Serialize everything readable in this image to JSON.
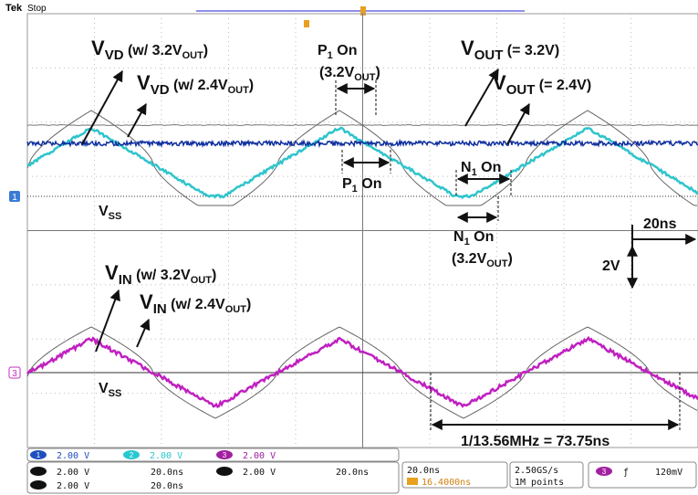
{
  "header": {
    "brand": "Tek",
    "status": "Stop"
  },
  "annotations": [
    {
      "segments": [
        {
          "t": "V"
        },
        {
          "t": "VD",
          "size": "sub"
        },
        {
          "t": " (w/ 3.2V",
          "size": "small"
        },
        {
          "t": "OUT",
          "size": "tiny"
        },
        {
          "t": ")",
          "size": "small"
        }
      ]
    },
    {
      "segments": [
        {
          "t": "V"
        },
        {
          "t": "VD",
          "size": "sub"
        },
        {
          "t": " (w/ 2.4V",
          "size": "small"
        },
        {
          "t": "OUT",
          "size": "tiny"
        },
        {
          "t": ")",
          "size": "small"
        }
      ]
    },
    {
      "segments": [
        {
          "t": "P",
          "size": "small"
        },
        {
          "t": "1",
          "size": "tiny"
        },
        {
          "t": " On",
          "size": "small"
        }
      ]
    },
    {
      "segments": [
        {
          "t": "(3.2V",
          "size": "small"
        },
        {
          "t": "OUT",
          "size": "tiny"
        },
        {
          "t": ")",
          "size": "small"
        }
      ]
    },
    {
      "segments": [
        {
          "t": "V"
        },
        {
          "t": "OUT",
          "size": "sub"
        },
        {
          "t": " (= 3.2V)",
          "size": "small"
        }
      ]
    },
    {
      "segments": [
        {
          "t": "V"
        },
        {
          "t": "OUT",
          "size": "sub"
        },
        {
          "t": " (= 2.4V)",
          "size": "small"
        }
      ]
    },
    {
      "segments": [
        {
          "t": "P",
          "size": "small"
        },
        {
          "t": "1",
          "size": "tiny"
        },
        {
          "t": " On",
          "size": "small"
        }
      ]
    },
    {
      "segments": [
        {
          "t": "N",
          "size": "small"
        },
        {
          "t": "1",
          "size": "tiny"
        },
        {
          "t": " On",
          "size": "small"
        }
      ]
    },
    {
      "segments": [
        {
          "t": "V",
          "size": "small"
        },
        {
          "t": "SS",
          "size": "tiny"
        }
      ]
    },
    {
      "segments": [
        {
          "t": "N",
          "size": "small"
        },
        {
          "t": "1",
          "size": "tiny"
        },
        {
          "t": " On",
          "size": "small"
        }
      ]
    },
    {
      "segments": [
        {
          "t": "(3.2V",
          "size": "small"
        },
        {
          "t": "OUT",
          "size": "tiny"
        },
        {
          "t": ")",
          "size": "small"
        }
      ]
    },
    {
      "segments": [
        {
          "t": "20ns",
          "size": "small"
        }
      ]
    },
    {
      "segments": [
        {
          "t": "2V",
          "size": "small"
        }
      ]
    },
    {
      "segments": [
        {
          "t": "V"
        },
        {
          "t": "IN",
          "size": "sub"
        },
        {
          "t": " (w/ 3.2V",
          "size": "small"
        },
        {
          "t": "OUT",
          "size": "tiny"
        },
        {
          "t": ")",
          "size": "small"
        }
      ]
    },
    {
      "segments": [
        {
          "t": "V"
        },
        {
          "t": "IN",
          "size": "sub"
        },
        {
          "t": " (w/ 2.4V",
          "size": "small"
        },
        {
          "t": "OUT",
          "size": "tiny"
        },
        {
          "t": ")",
          "size": "small"
        }
      ]
    },
    {
      "segments": [
        {
          "t": "V",
          "size": "small"
        },
        {
          "t": "SS",
          "size": "tiny"
        }
      ]
    },
    {
      "segments": [
        {
          "t": "1/13.56MHz = 73.75ns",
          "size": "small"
        }
      ]
    }
  ],
  "channel_markers": [
    "1",
    "3"
  ],
  "status_bar": {
    "channels": [
      {
        "id": "1",
        "scale": "2.00 V"
      },
      {
        "id": "2",
        "scale": "2.00 V"
      },
      {
        "id": "3",
        "scale": "2.00 V"
      }
    ],
    "refs": [
      [
        "2.00 V",
        "20.0ns",
        "2.00 V",
        "20.0ns"
      ],
      [
        "2.00 V",
        "20.0ns"
      ]
    ],
    "timebase": "20.0ns",
    "trigger_pos": "16.4000ns",
    "sample_rate": "2.50GS/s",
    "record": "1M points",
    "trigger": {
      "channel": "3",
      "slope": "ƒ",
      "level": "120mV"
    }
  }
}
